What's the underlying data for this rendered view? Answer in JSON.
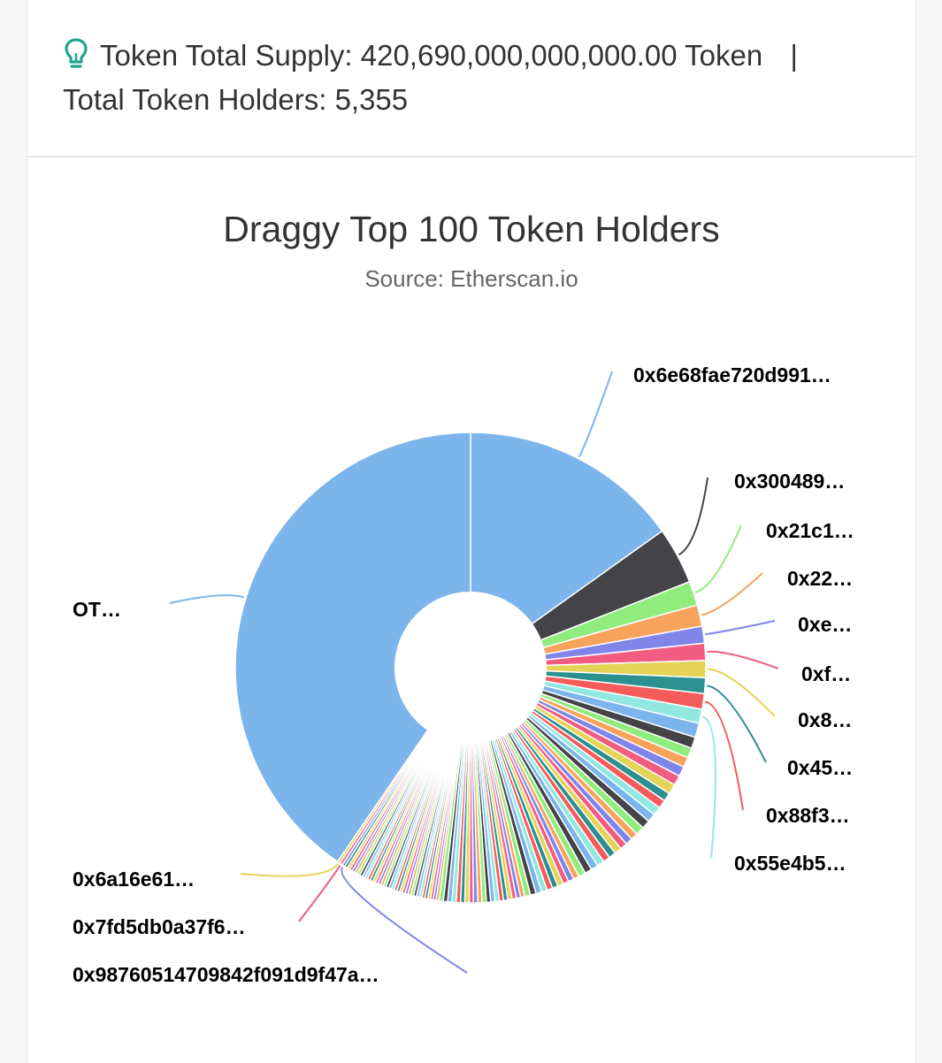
{
  "stats": {
    "supply_label": "Token Total Supply:",
    "supply_value": "420,690,000,000,000.00 Token",
    "separator": "|",
    "holders_label": "Total Token Holders:",
    "holders_value": "5,355"
  },
  "chart_data": {
    "type": "pie",
    "title": "Draggy Top 100 Token Holders",
    "subtitle": "Source: Etherscan.io",
    "series": [
      {
        "label": "0x6e68fae720d991…",
        "value": 15.5,
        "color": "#7cb5ec"
      },
      {
        "label": "0x300489…",
        "value": 4.0,
        "color": "#434348"
      },
      {
        "label": "0x21c1…",
        "value": 1.7,
        "color": "#90ed7d"
      },
      {
        "label": "0x22…",
        "value": 1.5,
        "color": "#f7a35c"
      },
      {
        "label": "0xe…",
        "value": 1.2,
        "color": "#8085e9"
      },
      {
        "label": "0xf…",
        "value": 1.2,
        "color": "#f15c80"
      },
      {
        "label": "0x8…",
        "value": 1.2,
        "color": "#e4d354"
      },
      {
        "label": "0x45…",
        "value": 1.1,
        "color": "#2b908f"
      },
      {
        "label": "0x88f3…",
        "value": 1.1,
        "color": "#f45b5b"
      },
      {
        "label": "0x55e4b5…",
        "value": 1.0,
        "color": "#91e8e1"
      },
      {
        "label": "",
        "value": 1.0,
        "color": "#7cb5ec"
      },
      {
        "label": "",
        "value": 0.8,
        "color": "#434348"
      },
      {
        "label": "",
        "value": 0.7,
        "color": "#90ed7d"
      },
      {
        "label": "",
        "value": 0.7,
        "color": "#f7a35c"
      },
      {
        "label": "",
        "value": 0.7,
        "color": "#8085e9"
      },
      {
        "label": "",
        "value": 0.7,
        "color": "#f15c80"
      },
      {
        "label": "",
        "value": 0.7,
        "color": "#e4d354"
      },
      {
        "label": "",
        "value": 0.6,
        "color": "#2b908f"
      },
      {
        "label": "",
        "value": 0.6,
        "color": "#f45b5b"
      },
      {
        "label": "",
        "value": 0.6,
        "color": "#91e8e1"
      },
      {
        "label": "",
        "value": 0.6,
        "color": "#7cb5ec"
      },
      {
        "label": "",
        "value": 0.6,
        "color": "#434348"
      },
      {
        "label": "",
        "value": 0.6,
        "color": "#90ed7d"
      },
      {
        "label": "",
        "value": 0.5,
        "color": "#f7a35c"
      },
      {
        "label": "",
        "value": 0.5,
        "color": "#8085e9"
      },
      {
        "label": "",
        "value": 0.5,
        "color": "#f15c80"
      },
      {
        "label": "",
        "value": 0.5,
        "color": "#e4d354"
      },
      {
        "label": "",
        "value": 0.5,
        "color": "#2b908f"
      },
      {
        "label": "",
        "value": 0.5,
        "color": "#f45b5b"
      },
      {
        "label": "",
        "value": 0.5,
        "color": "#91e8e1"
      },
      {
        "label": "",
        "value": 0.5,
        "color": "#7cb5ec"
      },
      {
        "label": "",
        "value": 0.5,
        "color": "#434348"
      },
      {
        "label": "",
        "value": 0.5,
        "color": "#90ed7d"
      },
      {
        "label": "",
        "value": 0.4,
        "color": "#f7a35c"
      },
      {
        "label": "",
        "value": 0.4,
        "color": "#8085e9"
      },
      {
        "label": "",
        "value": 0.4,
        "color": "#f15c80"
      },
      {
        "label": "",
        "value": 0.4,
        "color": "#e4d354"
      },
      {
        "label": "",
        "value": 0.4,
        "color": "#2b908f"
      },
      {
        "label": "",
        "value": 0.4,
        "color": "#f45b5b"
      },
      {
        "label": "",
        "value": 0.4,
        "color": "#91e8e1"
      },
      {
        "label": "",
        "value": 0.4,
        "color": "#7cb5ec"
      },
      {
        "label": "",
        "value": 0.4,
        "color": "#434348"
      },
      {
        "label": "",
        "value": 0.4,
        "color": "#90ed7d"
      },
      {
        "label": "",
        "value": 0.3,
        "color": "#f7a35c"
      },
      {
        "label": "",
        "value": 0.3,
        "color": "#8085e9"
      },
      {
        "label": "",
        "value": 0.3,
        "color": "#f15c80"
      },
      {
        "label": "",
        "value": 0.3,
        "color": "#e4d354"
      },
      {
        "label": "",
        "value": 0.3,
        "color": "#2b908f"
      },
      {
        "label": "",
        "value": 0.3,
        "color": "#f45b5b"
      },
      {
        "label": "",
        "value": 0.3,
        "color": "#91e8e1"
      },
      {
        "label": "",
        "value": 0.3,
        "color": "#7cb5ec"
      },
      {
        "label": "",
        "value": 0.3,
        "color": "#434348"
      },
      {
        "label": "",
        "value": 0.3,
        "color": "#90ed7d"
      },
      {
        "label": "",
        "value": 0.3,
        "color": "#f7a35c"
      },
      {
        "label": "",
        "value": 0.3,
        "color": "#8085e9"
      },
      {
        "label": "",
        "value": 0.3,
        "color": "#f15c80"
      },
      {
        "label": "",
        "value": 0.3,
        "color": "#e4d354"
      },
      {
        "label": "",
        "value": 0.3,
        "color": "#2b908f"
      },
      {
        "label": "",
        "value": 0.3,
        "color": "#f45b5b"
      },
      {
        "label": "",
        "value": 0.3,
        "color": "#91e8e1"
      },
      {
        "label": "",
        "value": 0.3,
        "color": "#7cb5ec"
      },
      {
        "label": "",
        "value": 0.3,
        "color": "#434348"
      },
      {
        "label": "",
        "value": 0.3,
        "color": "#90ed7d"
      },
      {
        "label": "",
        "value": 0.2,
        "color": "#f7a35c"
      },
      {
        "label": "",
        "value": 0.2,
        "color": "#8085e9"
      },
      {
        "label": "",
        "value": 0.2,
        "color": "#f15c80"
      },
      {
        "label": "",
        "value": 0.2,
        "color": "#e4d354"
      },
      {
        "label": "",
        "value": 0.2,
        "color": "#2b908f"
      },
      {
        "label": "",
        "value": 0.2,
        "color": "#f45b5b"
      },
      {
        "label": "",
        "value": 0.2,
        "color": "#91e8e1"
      },
      {
        "label": "",
        "value": 0.2,
        "color": "#7cb5ec"
      },
      {
        "label": "",
        "value": 0.2,
        "color": "#434348"
      },
      {
        "label": "",
        "value": 0.2,
        "color": "#90ed7d"
      },
      {
        "label": "",
        "value": 0.2,
        "color": "#f7a35c"
      },
      {
        "label": "",
        "value": 0.2,
        "color": "#8085e9"
      },
      {
        "label": "",
        "value": 0.2,
        "color": "#f15c80"
      },
      {
        "label": "",
        "value": 0.2,
        "color": "#e4d354"
      },
      {
        "label": "",
        "value": 0.2,
        "color": "#2b908f"
      },
      {
        "label": "",
        "value": 0.2,
        "color": "#f45b5b"
      },
      {
        "label": "",
        "value": 0.2,
        "color": "#91e8e1"
      },
      {
        "label": "",
        "value": 0.2,
        "color": "#7cb5ec"
      },
      {
        "label": "",
        "value": 0.2,
        "color": "#434348"
      },
      {
        "label": "",
        "value": 0.2,
        "color": "#90ed7d"
      },
      {
        "label": "",
        "value": 0.2,
        "color": "#f7a35c"
      },
      {
        "label": "",
        "value": 0.2,
        "color": "#8085e9"
      },
      {
        "label": "",
        "value": 0.2,
        "color": "#f15c80"
      },
      {
        "label": "",
        "value": 0.2,
        "color": "#e4d354"
      },
      {
        "label": "",
        "value": 0.2,
        "color": "#2b908f"
      },
      {
        "label": "",
        "value": 0.2,
        "color": "#f45b5b"
      },
      {
        "label": "",
        "value": 0.2,
        "color": "#91e8e1"
      },
      {
        "label": "",
        "value": 0.2,
        "color": "#7cb5ec"
      },
      {
        "label": "",
        "value": 0.2,
        "color": "#434348"
      },
      {
        "label": "",
        "value": 0.2,
        "color": "#90ed7d"
      },
      {
        "label": "",
        "value": 0.2,
        "color": "#f7a35c"
      },
      {
        "label": "",
        "value": 0.2,
        "color": "#8085e9"
      },
      {
        "label": "",
        "value": 0.2,
        "color": "#f15c80"
      },
      {
        "label": "",
        "value": 0.2,
        "color": "#e4d354"
      },
      {
        "label": "",
        "value": 0.2,
        "color": "#2b908f"
      },
      {
        "label": "0x98760514709842f091d9f47a…",
        "value": 0.2,
        "color": "#8085e9"
      },
      {
        "label": "0x7fd5db0a37f6…",
        "value": 0.2,
        "color": "#f15c80"
      },
      {
        "label": "0x6a16e61…",
        "value": 0.2,
        "color": "#e4d354"
      },
      {
        "label": "OT…",
        "value": 41.4,
        "color": "#7cb5ec"
      }
    ]
  }
}
